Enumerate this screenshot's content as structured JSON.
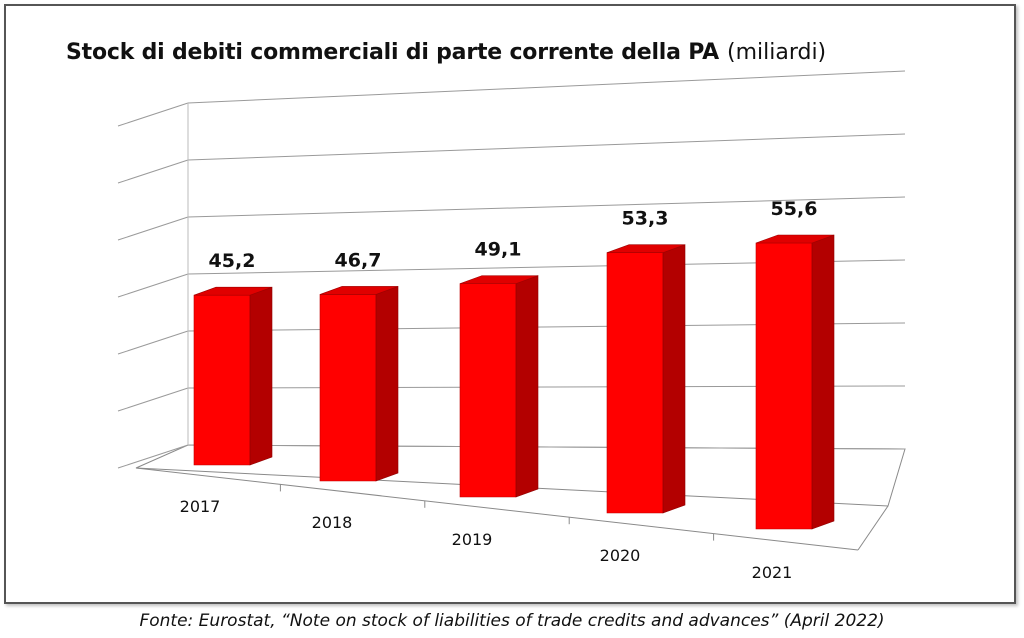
{
  "chart_data": {
    "type": "bar",
    "title": "Stock di debiti commerciali di parte corrente della PA",
    "unit_label": "(miliardi)",
    "categories": [
      "2017",
      "2018",
      "2019",
      "2020",
      "2021"
    ],
    "values": [
      45.2,
      46.7,
      49.1,
      53.3,
      55.6
    ],
    "value_labels": [
      "45,2",
      "46,7",
      "49,1",
      "53,3",
      "55,6"
    ],
    "xlabel": "",
    "ylabel": "",
    "ylim": [
      30,
      60
    ],
    "grid": true,
    "style": "3d-perspective",
    "bar_color": "#ff0000",
    "bar_side_color": "#b30000",
    "bar_top_color": "#e00000"
  },
  "source": "Fonte: Eurostat, “Note on stock of liabilities of trade credits and advances” (April 2022)"
}
